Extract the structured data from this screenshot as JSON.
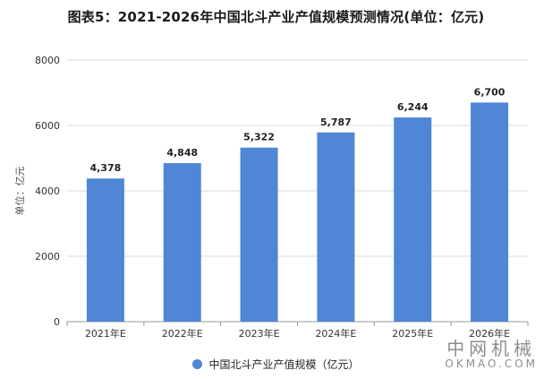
{
  "title": "图表5：2021-2026年中国北斗产业产值规模预测情况(单位：亿元)",
  "colors": {
    "bar": "#4f86d6",
    "grid": "#d9d9d9",
    "axis": "#9a9a9a",
    "text": "#222222"
  },
  "watermark": {
    "cn": "中网机械",
    "en": "OKMAO.COM"
  },
  "chart_data": {
    "type": "bar",
    "title": "图表5：2021-2026年中国北斗产业产值规模预测情况(单位：亿元)",
    "xlabel": "",
    "ylabel": "单位：亿元",
    "categories": [
      "2021年E",
      "2022年E",
      "2023年E",
      "2024年E",
      "2025年E",
      "2026年E"
    ],
    "series": [
      {
        "name": "中国北斗产业产值规模（亿元）",
        "values": [
          4378,
          4848,
          5322,
          5787,
          6244,
          6700
        ],
        "labels": [
          "4,378",
          "4,848",
          "5,322",
          "5,787",
          "6,244",
          "6,700"
        ]
      }
    ],
    "ylim": [
      0,
      8000
    ],
    "yticks": [
      0,
      2000,
      4000,
      6000,
      8000
    ],
    "grid": true,
    "legend": "bottom-center"
  }
}
